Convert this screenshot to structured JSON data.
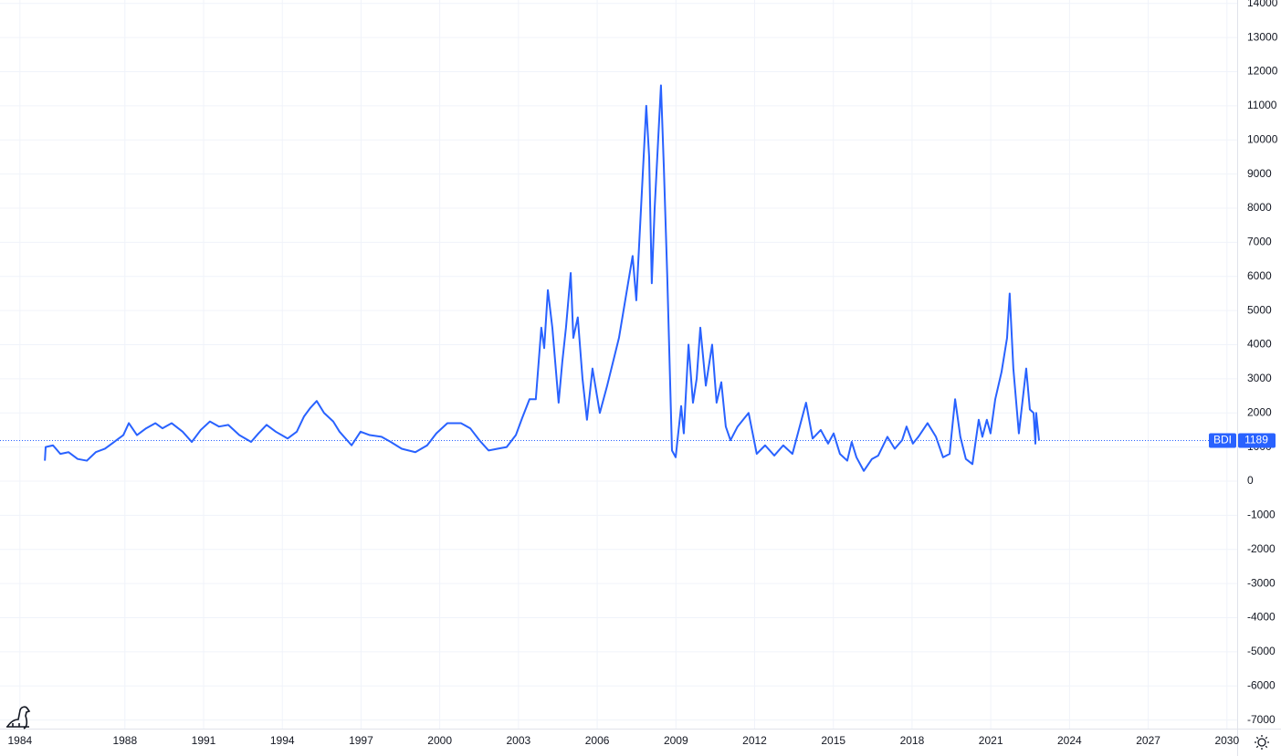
{
  "chart_data": {
    "type": "line",
    "x": [
      1984.95,
      1984.98,
      1985.26,
      1985.54,
      1985.85,
      1986.2,
      1986.55,
      1986.89,
      1987.24,
      1987.59,
      1987.94,
      1988.15,
      1988.46,
      1988.81,
      1989.16,
      1989.43,
      1989.78,
      1990.2,
      1990.55,
      1990.89,
      1991.24,
      1991.59,
      1991.94,
      1992.36,
      1992.81,
      1993.09,
      1993.4,
      1993.75,
      1994.2,
      1994.55,
      1994.83,
      1995.07,
      1995.31,
      1995.59,
      1995.94,
      1996.18,
      1996.64,
      1996.98,
      1997.33,
      1997.78,
      1998.13,
      1998.55,
      1999.07,
      1999.52,
      1999.87,
      2000.29,
      2000.81,
      2001.16,
      2001.51,
      2001.86,
      2002.2,
      2002.55,
      2002.9,
      2003.14,
      2003.42,
      2003.66,
      2003.87,
      2003.98,
      2004.12,
      2004.29,
      2004.53,
      2004.67,
      2004.81,
      2004.99,
      2005.09,
      2005.26,
      2005.44,
      2005.61,
      2005.82,
      2006.1,
      2006.38,
      2006.83,
      2007.35,
      2007.49,
      2007.87,
      2007.98,
      2008.08,
      2008.19,
      2008.43,
      2008.54,
      2008.67,
      2008.85,
      2008.99,
      2009.2,
      2009.3,
      2009.48,
      2009.65,
      2009.79,
      2009.93,
      2010.14,
      2010.38,
      2010.55,
      2010.73,
      2010.9,
      2011.08,
      2011.35,
      2011.77,
      2012.08,
      2012.4,
      2012.75,
      2013.09,
      2013.44,
      2013.96,
      2014.21,
      2014.52,
      2014.8,
      2015.01,
      2015.25,
      2015.53,
      2015.7,
      2015.88,
      2016.16,
      2016.47,
      2016.71,
      2017.06,
      2017.34,
      2017.62,
      2017.79,
      2018.03,
      2018.24,
      2018.59,
      2018.91,
      2019.18,
      2019.43,
      2019.64,
      2019.84,
      2020.05,
      2020.3,
      2020.54,
      2020.68,
      2020.85,
      2020.99,
      2021.17,
      2021.41,
      2021.62,
      2021.72,
      2021.86,
      2022.07,
      2022.35,
      2022.49,
      2022.63,
      2022.7,
      2022.73,
      2022.84
    ],
    "series": [
      {
        "name": "BDI",
        "color": "#2962ff",
        "values": [
          600,
          1000,
          1050,
          800,
          850,
          650,
          600,
          850,
          950,
          1150,
          1350,
          1700,
          1350,
          1550,
          1700,
          1550,
          1700,
          1450,
          1150,
          1500,
          1750,
          1600,
          1650,
          1350,
          1150,
          1400,
          1650,
          1450,
          1250,
          1450,
          1900,
          2150,
          2350,
          2000,
          1750,
          1450,
          1050,
          1450,
          1350,
          1300,
          1150,
          950,
          850,
          1050,
          1400,
          1700,
          1700,
          1550,
          1200,
          900,
          950,
          1000,
          1350,
          1850,
          2400,
          2400,
          4500,
          3900,
          5600,
          4500,
          2300,
          3500,
          4500,
          6100,
          4200,
          4800,
          3000,
          1800,
          3300,
          2000,
          2800,
          4200,
          6600,
          5300,
          11000,
          9500,
          5800,
          8000,
          11600,
          9200,
          6000,
          900,
          700,
          2200,
          1400,
          4000,
          2300,
          3000,
          4500,
          2800,
          4000,
          2300,
          2900,
          1600,
          1200,
          1600,
          2000,
          800,
          1050,
          750,
          1050,
          800,
          2300,
          1250,
          1500,
          1100,
          1400,
          800,
          600,
          1150,
          700,
          300,
          650,
          750,
          1300,
          950,
          1200,
          1600,
          1100,
          1300,
          1700,
          1300,
          700,
          800,
          2400,
          1300,
          650,
          500,
          1800,
          1300,
          1800,
          1400,
          2400,
          3200,
          4200,
          5500,
          3300,
          1400,
          3300,
          2100,
          2000,
          1100,
          2000,
          1189
        ]
      }
    ],
    "xlim": [
      1983.24,
      2030.39
    ],
    "xticks": [
      1984,
      1988,
      1991,
      1994,
      1997,
      2000,
      2003,
      2006,
      2009,
      2012,
      2015,
      2018,
      2021,
      2024,
      2027,
      2030
    ],
    "ylim": [
      -7252,
      14102
    ],
    "yticks": [
      14000,
      13000,
      12000,
      11000,
      10000,
      9000,
      8000,
      7000,
      6000,
      5000,
      4000,
      3000,
      2000,
      1000,
      0,
      -1000,
      -2000,
      -3000,
      -4000,
      -5000,
      -6000,
      -7000
    ],
    "grid": true
  }
}
